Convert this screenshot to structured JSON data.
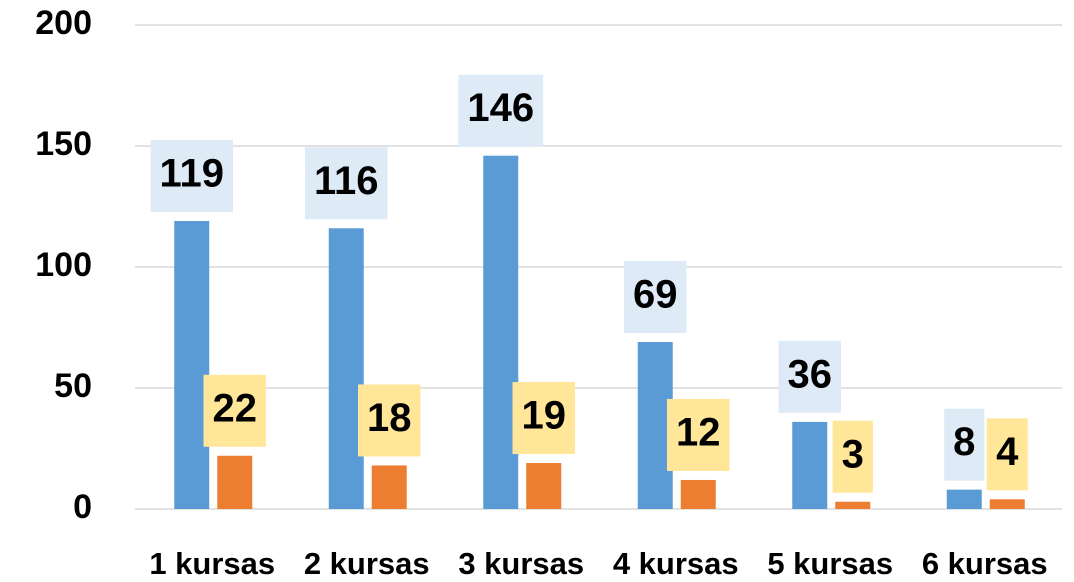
{
  "chart_data": {
    "type": "bar",
    "categories": [
      "1 kursas",
      "2 kursas",
      "3 kursas",
      "4 kursas",
      "5 kursas",
      "6 kursas"
    ],
    "series": [
      {
        "color": "#5b9bd5",
        "label_background": "#deebf7",
        "values": [
          119,
          116,
          146,
          69,
          36,
          8
        ]
      },
      {
        "color": "#ed7d31",
        "label_background": "#ffe699",
        "values": [
          22,
          18,
          19,
          12,
          3,
          4
        ]
      }
    ],
    "ylim": [
      0,
      200
    ],
    "yticks": [
      0,
      50,
      100,
      150,
      200
    ],
    "grid": true
  }
}
